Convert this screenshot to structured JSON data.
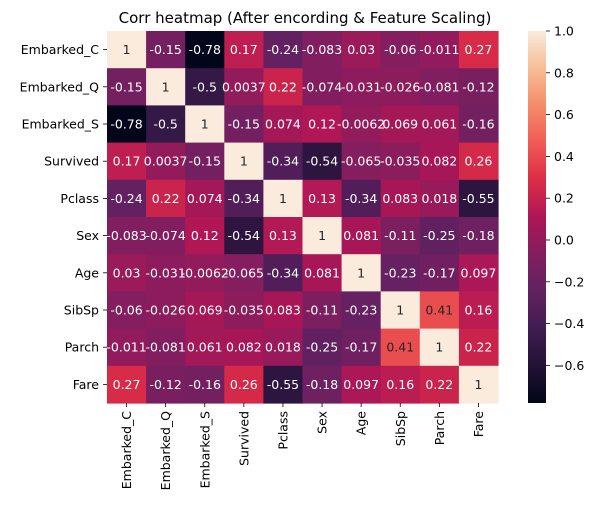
{
  "chart_data": {
    "type": "heatmap",
    "title": "Corr heatmap (After encording & Feature Scaling)",
    "xlabel": "",
    "ylabel": "",
    "labels": [
      "Embarked_C",
      "Embarked_Q",
      "Embarked_S",
      "Survived",
      "Pclass",
      "Sex",
      "Age",
      "SibSp",
      "Parch",
      "Fare"
    ],
    "annotations": [
      [
        "1",
        "-0.15",
        "-0.78",
        "0.17",
        "-0.24",
        "-0.083",
        "0.03",
        "-0.06",
        "-0.011",
        "0.27"
      ],
      [
        "-0.15",
        "1",
        "-0.5",
        "0.0037",
        "0.22",
        "-0.074",
        "-0.031",
        "-0.026",
        "-0.081",
        "-0.12"
      ],
      [
        "-0.78",
        "-0.5",
        "1",
        "-0.15",
        "0.074",
        "0.12",
        "-0.0062",
        "0.069",
        "0.061",
        "-0.16"
      ],
      [
        "0.17",
        "0.0037",
        "-0.15",
        "1",
        "-0.34",
        "-0.54",
        "-0.065",
        "-0.035",
        "0.082",
        "0.26"
      ],
      [
        "-0.24",
        "0.22",
        "0.074",
        "-0.34",
        "1",
        "0.13",
        "-0.34",
        "0.083",
        "0.018",
        "-0.55"
      ],
      [
        "-0.083",
        "-0.074",
        "0.12",
        "-0.54",
        "0.13",
        "1",
        "0.081",
        "-0.11",
        "-0.25",
        "-0.18"
      ],
      [
        "0.03",
        "-0.031",
        "-0.0062",
        "-0.065",
        "-0.34",
        "0.081",
        "1",
        "-0.23",
        "-0.17",
        "0.097"
      ],
      [
        "-0.06",
        "-0.026",
        "0.069",
        "-0.035",
        "0.083",
        "-0.11",
        "-0.23",
        "1",
        "0.41",
        "0.16"
      ],
      [
        "-0.011",
        "-0.081",
        "0.061",
        "0.082",
        "0.018",
        "-0.25",
        "-0.17",
        "0.41",
        "1",
        "0.22"
      ],
      [
        "0.27",
        "-0.12",
        "-0.16",
        "0.26",
        "-0.55",
        "-0.18",
        "0.097",
        "0.16",
        "0.22",
        "1"
      ]
    ],
    "values": [
      [
        1,
        -0.15,
        -0.78,
        0.17,
        -0.24,
        -0.083,
        0.03,
        -0.06,
        -0.011,
        0.27
      ],
      [
        -0.15,
        1,
        -0.5,
        0.0037,
        0.22,
        -0.074,
        -0.031,
        -0.026,
        -0.081,
        -0.12
      ],
      [
        -0.78,
        -0.5,
        1,
        -0.15,
        0.074,
        0.12,
        -0.0062,
        0.069,
        0.061,
        -0.16
      ],
      [
        0.17,
        0.0037,
        -0.15,
        1,
        -0.34,
        -0.54,
        -0.065,
        -0.035,
        0.082,
        0.26
      ],
      [
        -0.24,
        0.22,
        0.074,
        -0.34,
        1,
        0.13,
        -0.34,
        0.083,
        0.018,
        -0.55
      ],
      [
        -0.083,
        -0.074,
        0.12,
        -0.54,
        0.13,
        1,
        0.081,
        -0.11,
        -0.25,
        -0.18
      ],
      [
        0.03,
        -0.031,
        -0.0062,
        -0.065,
        -0.34,
        0.081,
        1,
        -0.23,
        -0.17,
        0.097
      ],
      [
        -0.06,
        -0.026,
        0.069,
        -0.035,
        0.083,
        -0.11,
        -0.23,
        1,
        0.41,
        0.16
      ],
      [
        -0.011,
        -0.081,
        0.061,
        0.082,
        0.018,
        -0.25,
        -0.17,
        0.41,
        1,
        0.22
      ],
      [
        0.27,
        -0.12,
        -0.16,
        0.26,
        -0.55,
        -0.18,
        0.097,
        0.16,
        0.22,
        1
      ]
    ],
    "vmin": -0.78,
    "vmax": 1,
    "colormap": "rocket",
    "colorbar": {
      "ticks": [
        -0.6,
        -0.4,
        -0.2,
        0.0,
        0.2,
        0.4,
        0.6,
        0.8,
        1.0
      ],
      "tick_labels": [
        "−0.6",
        "−0.4",
        "−0.2",
        "0.0",
        "0.2",
        "0.4",
        "0.6",
        "0.8",
        "1.0"
      ]
    },
    "grid": false,
    "legend": "colorbar-right"
  }
}
